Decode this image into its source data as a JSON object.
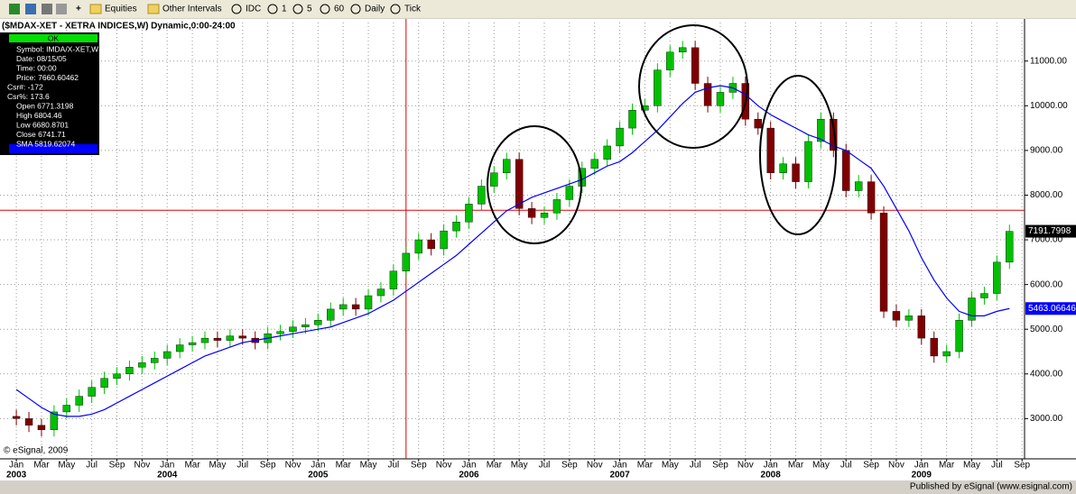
{
  "toolbar": {
    "items": [
      "Equities",
      "Other Intervals",
      "IDC",
      "1",
      "5",
      "60",
      "Daily",
      "Tick"
    ]
  },
  "data_window": {
    "status": "OK",
    "lines": [
      "Symbol: IMDA/X-XET,W",
      "Date: 08/15/05",
      "Time: 00:00",
      "Price: 7660.60462",
      "Csr#: -172",
      "Csr%: 173.6",
      "Open 6771.3198",
      "High 6804.46",
      "Low 6680.8701",
      "Close 6741.71",
      "SMA 5819.62074"
    ]
  },
  "status_bar": "Published by eSignal (www.esignal.com)",
  "copyright": "© eSignal, 2009",
  "chart_data": {
    "type": "candlestick",
    "title": "($MDAX-XET - XETRA INDICES,W) Dynamic,0:00-24:00",
    "up_color": "#00c000",
    "down_color": "#800000",
    "grid": true,
    "x": [
      0,
      1,
      2,
      3,
      4,
      5,
      6,
      7,
      8,
      9,
      10,
      11,
      12,
      13,
      14,
      15,
      16,
      17,
      18,
      19,
      20,
      21,
      22,
      23,
      24,
      25,
      26,
      27,
      28,
      29,
      30,
      31,
      32,
      33,
      34,
      35,
      36,
      37,
      38,
      39,
      40,
      41,
      42,
      43,
      44,
      45,
      46,
      47,
      48,
      49,
      50,
      51,
      52,
      53,
      54,
      55,
      56,
      57,
      58,
      59,
      60,
      61,
      62,
      63,
      64,
      65,
      66,
      67,
      68,
      69,
      70,
      71,
      72,
      73,
      74,
      75,
      76,
      77,
      78,
      79
    ],
    "open": [
      3050,
      3000,
      2850,
      2750,
      3150,
      3300,
      3500,
      3700,
      3900,
      4000,
      4150,
      4250,
      4350,
      4500,
      4650,
      4700,
      4800,
      4750,
      4850,
      4800,
      4700,
      4900,
      4950,
      5050,
      5100,
      5200,
      5450,
      5550,
      5450,
      5750,
      5900,
      6300,
      6700,
      7000,
      6800,
      7200,
      7400,
      7800,
      8200,
      8500,
      8800,
      7700,
      7500,
      7600,
      7900,
      8200,
      8600,
      8800,
      9100,
      9500,
      9900,
      10000,
      10800,
      11200,
      11300,
      10500,
      10000,
      10300,
      10500,
      9700,
      9500,
      8500,
      8700,
      8300,
      9200,
      9700,
      9000,
      8100,
      8300,
      7600,
      5400,
      5200,
      5300,
      4800,
      4400,
      4500,
      5200,
      5700,
      5800,
      6500
    ],
    "high": [
      3200,
      3150,
      3000,
      3300,
      3450,
      3650,
      3850,
      4050,
      4150,
      4300,
      4400,
      4500,
      4650,
      4800,
      4850,
      4950,
      4950,
      5000,
      5000,
      4950,
      5050,
      5100,
      5200,
      5250,
      5350,
      5600,
      5700,
      5700,
      5900,
      6050,
      6450,
      6850,
      7150,
      7150,
      7350,
      7550,
      7950,
      8350,
      8650,
      8950,
      8950,
      7850,
      7750,
      8050,
      8350,
      8750,
      8950,
      9250,
      9650,
      10050,
      10150,
      10950,
      11350,
      11450,
      11450,
      10650,
      10450,
      10650,
      10650,
      9850,
      9650,
      8850,
      8850,
      9350,
      9850,
      9850,
      9150,
      8450,
      8450,
      7750,
      5550,
      5450,
      5450,
      4950,
      4650,
      5350,
      5850,
      5950,
      6650,
      7340
    ],
    "low": [
      2850,
      2700,
      2600,
      2600,
      3000,
      3150,
      3350,
      3550,
      3750,
      3850,
      4000,
      4100,
      4200,
      4350,
      4500,
      4550,
      4600,
      4600,
      4650,
      4550,
      4550,
      4750,
      4800,
      4900,
      4950,
      5050,
      5300,
      5300,
      5300,
      5600,
      5750,
      6150,
      6550,
      6650,
      6650,
      7050,
      7250,
      7650,
      8050,
      8350,
      7550,
      7350,
      7350,
      7450,
      7750,
      8050,
      8450,
      8650,
      8950,
      9350,
      9750,
      9850,
      10650,
      11050,
      10350,
      9850,
      9850,
      10150,
      9550,
      9350,
      8350,
      8350,
      8150,
      8150,
      9050,
      8850,
      7950,
      7950,
      7450,
      5250,
      5050,
      5050,
      4650,
      4250,
      4250,
      4350,
      5050,
      5550,
      5650,
      6350
    ],
    "close": [
      3000,
      2850,
      2750,
      3150,
      3300,
      3500,
      3700,
      3900,
      4000,
      4150,
      4250,
      4350,
      4500,
      4650,
      4700,
      4800,
      4750,
      4850,
      4800,
      4700,
      4900,
      4950,
      5050,
      5100,
      5200,
      5450,
      5550,
      5450,
      5750,
      5900,
      6300,
      6700,
      7000,
      6800,
      7200,
      7400,
      7800,
      8200,
      8500,
      8800,
      7700,
      7500,
      7600,
      7900,
      8200,
      8600,
      8800,
      9100,
      9500,
      9900,
      10000,
      10800,
      11200,
      11300,
      10500,
      10000,
      10300,
      10500,
      9700,
      9500,
      8500,
      8700,
      8300,
      9200,
      9700,
      9000,
      8100,
      8300,
      7600,
      5400,
      5200,
      5300,
      4800,
      4400,
      4500,
      5200,
      5700,
      5800,
      6500,
      7190
    ],
    "sma": {
      "color": "#0000ff",
      "values": [
        3650,
        3450,
        3250,
        3100,
        3050,
        3050,
        3100,
        3200,
        3350,
        3500,
        3650,
        3800,
        3950,
        4100,
        4250,
        4400,
        4500,
        4600,
        4700,
        4750,
        4800,
        4850,
        4900,
        4950,
        5000,
        5050,
        5150,
        5250,
        5350,
        5500,
        5650,
        5850,
        6050,
        6250,
        6450,
        6650,
        6900,
        7150,
        7400,
        7650,
        7800,
        7950,
        8050,
        8150,
        8250,
        8350,
        8500,
        8650,
        8750,
        8950,
        9200,
        9450,
        9750,
        10050,
        10300,
        10400,
        10450,
        10400,
        10250,
        10000,
        9800,
        9650,
        9500,
        9350,
        9250,
        9100,
        9000,
        8800,
        8600,
        8200,
        7700,
        7200,
        6600,
        6100,
        5700,
        5400,
        5300,
        5300,
        5400,
        5463
      ]
    },
    "xlim": [
      -1.3,
      80.2
    ],
    "xticks": [
      {
        "value": 0,
        "label": "Jan"
      },
      {
        "value": 2,
        "label": "Mar"
      },
      {
        "value": 4,
        "label": "May"
      },
      {
        "value": 6,
        "label": "Jul"
      },
      {
        "value": 8,
        "label": "Sep"
      },
      {
        "value": 10,
        "label": "Nov"
      },
      {
        "value": 12,
        "label": "Jan"
      },
      {
        "value": 14,
        "label": "Mar"
      },
      {
        "value": 16,
        "label": "May"
      },
      {
        "value": 18,
        "label": "Jul"
      },
      {
        "value": 20,
        "label": "Sep"
      },
      {
        "value": 22,
        "label": "Nov"
      },
      {
        "value": 24,
        "label": "Jan"
      },
      {
        "value": 26,
        "label": "Mar"
      },
      {
        "value": 28,
        "label": "May"
      },
      {
        "value": 30,
        "label": "Jul"
      },
      {
        "value": 32,
        "label": "Sep"
      },
      {
        "value": 34,
        "label": "Nov"
      },
      {
        "value": 36,
        "label": "Jan"
      },
      {
        "value": 38,
        "label": "Mar"
      },
      {
        "value": 40,
        "label": "May"
      },
      {
        "value": 42,
        "label": "Jul"
      },
      {
        "value": 44,
        "label": "Sep"
      },
      {
        "value": 46,
        "label": "Nov"
      },
      {
        "value": 48,
        "label": "Jan"
      },
      {
        "value": 50,
        "label": "Mar"
      },
      {
        "value": 52,
        "label": "May"
      },
      {
        "value": 54,
        "label": "Jul"
      },
      {
        "value": 56,
        "label": "Sep"
      },
      {
        "value": 58,
        "label": "Nov"
      },
      {
        "value": 60,
        "label": "Jan"
      },
      {
        "value": 62,
        "label": "Mar"
      },
      {
        "value": 64,
        "label": "May"
      },
      {
        "value": 66,
        "label": "Jul"
      },
      {
        "value": 68,
        "label": "Sep"
      },
      {
        "value": 70,
        "label": "Nov"
      },
      {
        "value": 72,
        "label": "Jan"
      },
      {
        "value": 74,
        "label": "Mar"
      },
      {
        "value": 76,
        "label": "May"
      },
      {
        "value": 78,
        "label": "Jul"
      },
      {
        "value": 80,
        "label": "Sep"
      }
    ],
    "year_ticks": [
      {
        "value": 0,
        "label": "2003"
      },
      {
        "value": 12,
        "label": "2004"
      },
      {
        "value": 24,
        "label": "2005"
      },
      {
        "value": 36,
        "label": "2006"
      },
      {
        "value": 48,
        "label": "2007"
      },
      {
        "value": 60,
        "label": "2008"
      },
      {
        "value": 72,
        "label": "2009"
      }
    ],
    "ylim": [
      2100,
      11660
    ],
    "yticks": [
      {
        "value": 3000,
        "label": "3000.00"
      },
      {
        "value": 4000,
        "label": "4000.00"
      },
      {
        "value": 5000,
        "label": "5000.00"
      },
      {
        "value": 6000,
        "label": "6000.00"
      },
      {
        "value": 7000,
        "label": "7000.00"
      },
      {
        "value": 8000,
        "label": "8000.00"
      },
      {
        "value": 9000,
        "label": "9000.00"
      },
      {
        "value": 10000,
        "label": "10000.00"
      },
      {
        "value": 11000,
        "label": "11000.00"
      }
    ],
    "cursor": {
      "x": 31,
      "y": 7660.60462
    },
    "last_price": 7191.7998,
    "last_sma": 5463.06646
  }
}
